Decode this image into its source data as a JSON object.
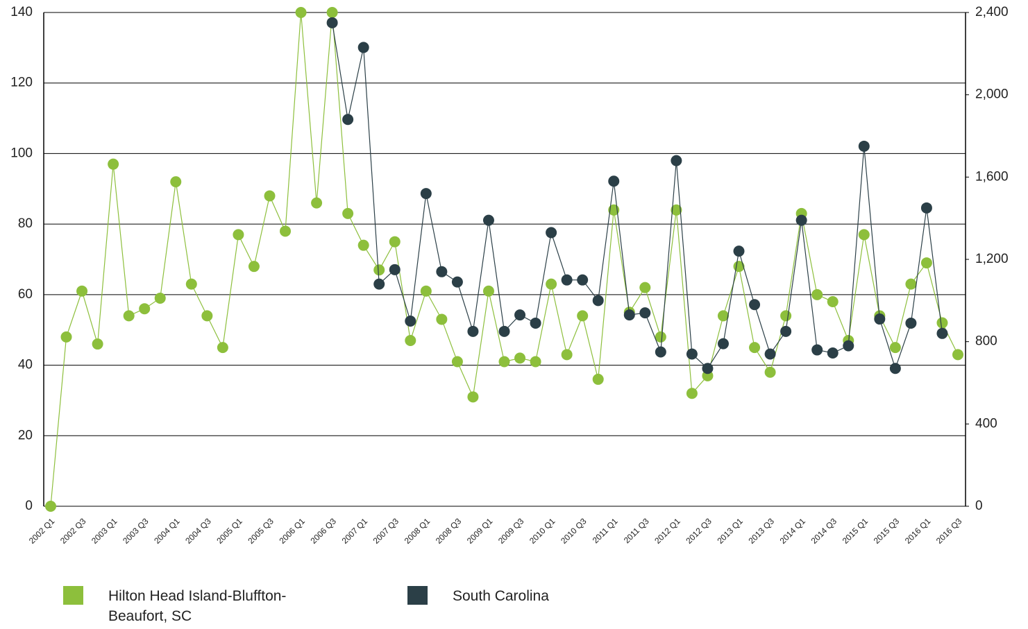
{
  "chart_data": {
    "type": "line",
    "categories": [
      "2002 Q1",
      null,
      "2002 Q3",
      null,
      "2003 Q1",
      null,
      "2003 Q3",
      null,
      "2004 Q1",
      null,
      "2004 Q3",
      null,
      "2005 Q1",
      null,
      "2005 Q3",
      null,
      "2006 Q1",
      null,
      "2006 Q3",
      null,
      "2007 Q1",
      null,
      "2007 Q3",
      null,
      "2008 Q1",
      null,
      "2008 Q3",
      null,
      "2009 Q1",
      null,
      "2009 Q3",
      null,
      "2010 Q1",
      null,
      "2010 Q3",
      null,
      "2011 Q1",
      null,
      "2011 Q3",
      null,
      "2012 Q1",
      null,
      "2012 Q3",
      null,
      "2013 Q1",
      null,
      "2013 Q3",
      null,
      "2014 Q1",
      null,
      "2014 Q3",
      null,
      "2015 Q1",
      null,
      "2015 Q3",
      null,
      "2016 Q1",
      null,
      "2016 Q3"
    ],
    "series": [
      {
        "name": "Hilton Head Island-Bluffton-Beaufort, SC",
        "color": "#8dbf3c",
        "values": [
          0,
          48,
          61,
          46,
          97,
          54,
          56,
          59,
          92,
          63,
          54,
          45,
          77,
          68,
          88,
          78,
          140,
          86,
          140,
          83,
          74,
          67,
          75,
          47,
          61,
          53,
          41,
          31,
          61,
          41,
          42,
          41,
          63,
          43,
          54,
          36,
          84,
          55,
          62,
          48,
          84,
          32,
          37,
          54,
          68,
          45,
          38,
          54,
          83,
          60,
          58,
          47,
          77,
          54,
          45,
          63,
          69,
          52,
          43
        ]
      },
      {
        "name": "South Carolina",
        "color": "#2b3f47",
        "axis": "y2",
        "values": [
          null,
          null,
          null,
          null,
          null,
          null,
          null,
          null,
          null,
          null,
          null,
          null,
          null,
          null,
          null,
          null,
          null,
          null,
          2350,
          1880,
          2230,
          1080,
          1150,
          900,
          1520,
          1140,
          1090,
          850,
          1390,
          850,
          930,
          890,
          1330,
          1100,
          1100,
          1000,
          1580,
          930,
          940,
          750,
          1680,
          740,
          670,
          790,
          1240,
          980,
          740,
          850,
          1390,
          760,
          745,
          780,
          1750,
          910,
          670,
          890,
          1450,
          840,
          null
        ]
      }
    ],
    "ylim": [
      0,
      140
    ],
    "yticks": [
      0,
      20,
      40,
      60,
      80,
      100,
      120,
      140
    ],
    "y2lim": [
      0,
      2400
    ],
    "y2ticks": [
      0,
      400,
      800,
      {
        "value": 1200,
        "label": "1,200"
      },
      {
        "value": 1600,
        "label": "1,600"
      },
      {
        "value": 2000,
        "label": "2,000"
      },
      {
        "value": 2400,
        "label": "2,400"
      }
    ],
    "grid": true
  }
}
